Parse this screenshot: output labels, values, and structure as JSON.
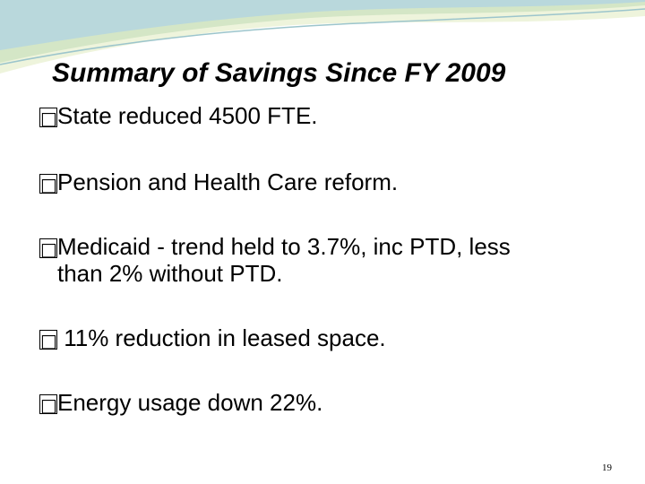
{
  "slide": {
    "title": "Summary of Savings Since FY 2009",
    "bullet_glyph": "□",
    "bullets": [
      {
        "text": "State reduced 4500 FTE."
      },
      {
        "text": "Pension and Health Care reform."
      },
      {
        "line1": "Medicaid - trend held to 3.7%, inc PTD, less",
        "line2": "than 2% without PTD."
      },
      {
        "text": " 11% reduction in leased space."
      },
      {
        "text": "Energy usage down 22%."
      }
    ],
    "page_number": "19"
  },
  "colors": {
    "swoosh_light": "#eef4dc",
    "swoosh_mid": "#d4e6c6",
    "swoosh_teal": "#b9d8dc"
  }
}
